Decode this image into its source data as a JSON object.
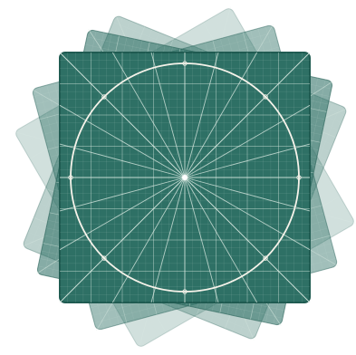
{
  "scene": {
    "background_color": "#ffffff",
    "mat_color": "#2e7065",
    "back_mat_color": "#2e7065",
    "line_color": "#dfeee6",
    "circle_color": "#f6f3ea",
    "back_mat_opacities": [
      0.22,
      0.32,
      0.45,
      0.58
    ],
    "back_mat_rotations_deg": [
      -30,
      22,
      -15,
      12
    ],
    "radial_line_count": 24
  }
}
